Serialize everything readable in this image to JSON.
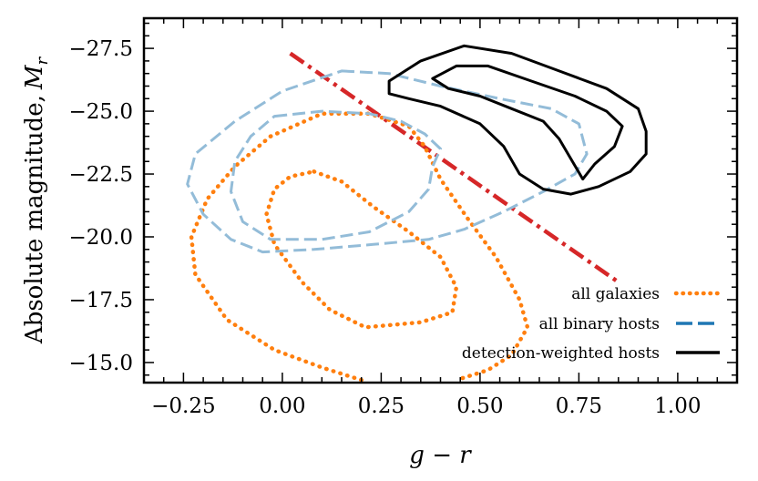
{
  "chart_data": {
    "type": "line",
    "title": "",
    "xlabel": "g − r",
    "ylabel_text": "Absolute magnitude,",
    "ylabel_symbol": "M",
    "ylabel_subscript": "r",
    "xlim": [
      -0.35,
      1.15
    ],
    "ylim": [
      -14.2,
      -28.7
    ],
    "y_inverted": true,
    "x_ticks": [
      -0.25,
      0.0,
      0.25,
      0.5,
      0.75,
      1.0
    ],
    "x_tick_labels": [
      "−0.25",
      "0.00",
      "0.25",
      "0.50",
      "0.75",
      "1.00"
    ],
    "y_ticks": [
      -27.5,
      -25.0,
      -22.5,
      -20.0,
      -17.5,
      -15.0
    ],
    "y_tick_labels": [
      "−27.5",
      "−25.0",
      "−22.5",
      "−20.0",
      "−17.5",
      "−15.0"
    ],
    "grid": false,
    "legend_position": "bottom-right",
    "colors": {
      "all_galaxies": "#ff7f0e",
      "all_binary_hosts": "#1f77b4",
      "all_binary_hosts_contour": "#93bcd8",
      "detection_weighted": "#000000",
      "cut_line": "#d62728"
    },
    "legend": [
      {
        "label": "all galaxies",
        "style": "dotted",
        "color": "#ff7f0e"
      },
      {
        "label": "all binary hosts",
        "style": "dashed",
        "color": "#1f77b4"
      },
      {
        "label": "detection-weighted hosts",
        "style": "solid",
        "color": "#000000"
      }
    ],
    "series": [
      {
        "name": "all galaxies (outer contour)",
        "style": "dotted",
        "color": "#ff7f0e",
        "closed": false,
        "points": [
          [
            0.2,
            -14.3
          ],
          [
            0.1,
            -14.8
          ],
          [
            -0.02,
            -15.5
          ],
          [
            -0.14,
            -16.7
          ],
          [
            -0.22,
            -18.5
          ],
          [
            -0.23,
            -20.0
          ],
          [
            -0.19,
            -21.5
          ],
          [
            -0.12,
            -22.8
          ],
          [
            -0.03,
            -24.0
          ],
          [
            0.1,
            -24.9
          ],
          [
            0.22,
            -24.9
          ],
          [
            0.32,
            -24.4
          ],
          [
            0.36,
            -23.6
          ],
          [
            0.4,
            -22.3
          ],
          [
            0.47,
            -20.7
          ],
          [
            0.54,
            -19.2
          ],
          [
            0.6,
            -17.5
          ],
          [
            0.62,
            -16.4
          ],
          [
            0.58,
            -15.3
          ],
          [
            0.52,
            -14.7
          ],
          [
            0.44,
            -14.3
          ]
        ]
      },
      {
        "name": "all galaxies (inner contour)",
        "style": "dotted",
        "color": "#ff7f0e",
        "closed": true,
        "points": [
          [
            0.08,
            -22.6
          ],
          [
            0.15,
            -22.2
          ],
          [
            0.23,
            -21.2
          ],
          [
            0.32,
            -20.2
          ],
          [
            0.4,
            -19.2
          ],
          [
            0.44,
            -18.0
          ],
          [
            0.43,
            -17.0
          ],
          [
            0.35,
            -16.6
          ],
          [
            0.21,
            -16.4
          ],
          [
            0.12,
            -17.1
          ],
          [
            0.05,
            -18.2
          ],
          [
            -0.02,
            -19.7
          ],
          [
            -0.04,
            -20.9
          ],
          [
            -0.02,
            -21.9
          ],
          [
            0.02,
            -22.4
          ]
        ]
      },
      {
        "name": "all binary hosts (outer contour)",
        "style": "dashed",
        "color": "#93bcd8",
        "closed": true,
        "points": [
          [
            0.15,
            -26.6
          ],
          [
            0.27,
            -26.5
          ],
          [
            0.4,
            -26.0
          ],
          [
            0.55,
            -25.5
          ],
          [
            0.68,
            -25.1
          ],
          [
            0.75,
            -24.5
          ],
          [
            0.77,
            -23.3
          ],
          [
            0.74,
            -22.5
          ],
          [
            0.66,
            -21.8
          ],
          [
            0.56,
            -21.0
          ],
          [
            0.46,
            -20.3
          ],
          [
            0.37,
            -19.9
          ],
          [
            0.23,
            -19.7
          ],
          [
            0.08,
            -19.5
          ],
          [
            -0.05,
            -19.4
          ],
          [
            -0.13,
            -19.9
          ],
          [
            -0.2,
            -20.9
          ],
          [
            -0.24,
            -22.1
          ],
          [
            -0.22,
            -23.3
          ],
          [
            -0.12,
            -24.6
          ],
          [
            0.0,
            -25.8
          ]
        ]
      },
      {
        "name": "all binary hosts (inner contour)",
        "style": "dashed",
        "color": "#93bcd8",
        "closed": true,
        "points": [
          [
            -0.02,
            -24.8
          ],
          [
            0.1,
            -25.0
          ],
          [
            0.22,
            -24.9
          ],
          [
            0.3,
            -24.6
          ],
          [
            0.36,
            -24.1
          ],
          [
            0.4,
            -23.5
          ],
          [
            0.38,
            -22.8
          ],
          [
            0.37,
            -21.9
          ],
          [
            0.32,
            -21.0
          ],
          [
            0.22,
            -20.2
          ],
          [
            0.1,
            -19.9
          ],
          [
            -0.03,
            -19.9
          ],
          [
            -0.1,
            -20.6
          ],
          [
            -0.13,
            -21.8
          ],
          [
            -0.12,
            -23.0
          ],
          [
            -0.08,
            -24.0
          ]
        ]
      },
      {
        "name": "detection-weighted hosts (outer contour)",
        "style": "solid",
        "color": "#000000",
        "closed": true,
        "points": [
          [
            0.27,
            -26.2
          ],
          [
            0.35,
            -27.0
          ],
          [
            0.46,
            -27.6
          ],
          [
            0.58,
            -27.3
          ],
          [
            0.7,
            -26.6
          ],
          [
            0.82,
            -25.9
          ],
          [
            0.9,
            -25.1
          ],
          [
            0.92,
            -24.2
          ],
          [
            0.92,
            -23.3
          ],
          [
            0.88,
            -22.6
          ],
          [
            0.8,
            -22.0
          ],
          [
            0.73,
            -21.7
          ],
          [
            0.66,
            -21.9
          ],
          [
            0.6,
            -22.5
          ],
          [
            0.56,
            -23.6
          ],
          [
            0.5,
            -24.5
          ],
          [
            0.4,
            -25.2
          ],
          [
            0.32,
            -25.5
          ],
          [
            0.27,
            -25.7
          ]
        ]
      },
      {
        "name": "detection-weighted hosts (inner contour)",
        "style": "solid",
        "color": "#000000",
        "closed": true,
        "points": [
          [
            0.38,
            -26.3
          ],
          [
            0.44,
            -26.8
          ],
          [
            0.52,
            -26.8
          ],
          [
            0.63,
            -26.2
          ],
          [
            0.74,
            -25.6
          ],
          [
            0.82,
            -25.0
          ],
          [
            0.86,
            -24.4
          ],
          [
            0.84,
            -23.6
          ],
          [
            0.79,
            -22.9
          ],
          [
            0.76,
            -22.3
          ],
          [
            0.73,
            -23.1
          ],
          [
            0.7,
            -23.9
          ],
          [
            0.66,
            -24.6
          ],
          [
            0.58,
            -25.1
          ],
          [
            0.5,
            -25.6
          ],
          [
            0.42,
            -25.9
          ]
        ]
      },
      {
        "name": "selection cut",
        "style": "dashdot",
        "color": "#d62728",
        "closed": false,
        "points": [
          [
            0.02,
            -27.3
          ],
          [
            0.85,
            -18.2
          ]
        ]
      }
    ]
  }
}
